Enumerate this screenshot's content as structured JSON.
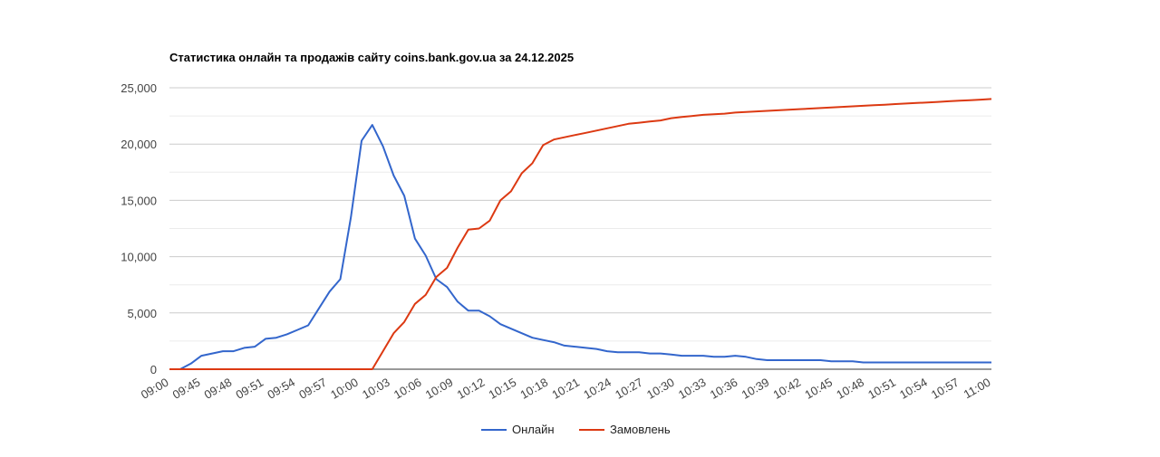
{
  "chart_data": {
    "type": "line",
    "title": "Статистика онлайн та продажів сайту coins.bank.gov.ua за 24.12.2025",
    "ylim": [
      0,
      25000
    ],
    "y_ticks": [
      "0",
      "5,000",
      "10,000",
      "15,000",
      "20,000",
      "25,000"
    ],
    "x_tick_labels": [
      "09:00",
      "09:45",
      "09:48",
      "09:51",
      "09:54",
      "09:57",
      "10:00",
      "10:03",
      "10:06",
      "10:09",
      "10:12",
      "10:15",
      "10:18",
      "10:21",
      "10:24",
      "10:27",
      "10:30",
      "10:33",
      "10:36",
      "10:39",
      "10:42",
      "10:45",
      "10:48",
      "10:51",
      "10:54",
      "10:57",
      "11:00"
    ],
    "grid": true,
    "legend_position": "bottom",
    "series": [
      {
        "name": "Онлайн",
        "color": "#3366cc",
        "values": [
          0,
          0,
          500,
          1200,
          1400,
          1600,
          1600,
          1900,
          2000,
          2700,
          2800,
          3100,
          3500,
          3900,
          5400,
          6900,
          8000,
          13500,
          20300,
          21700,
          19800,
          17200,
          15400,
          11600,
          10100,
          8000,
          7300,
          6000,
          5200,
          5200,
          4700,
          4000,
          3600,
          3200,
          2800,
          2600,
          2400,
          2100,
          2000,
          1900,
          1800,
          1600,
          1500,
          1500,
          1500,
          1400,
          1400,
          1300,
          1200,
          1200,
          1200,
          1100,
          1100,
          1200,
          1100,
          900,
          800,
          800,
          800,
          800,
          800,
          800,
          700,
          700,
          700,
          600,
          600,
          600,
          600,
          600,
          600,
          600,
          600,
          600,
          600,
          600,
          600,
          600
        ]
      },
      {
        "name": "Замовлень",
        "color": "#dc3912",
        "values": [
          0,
          0,
          0,
          0,
          0,
          0,
          0,
          0,
          0,
          0,
          0,
          0,
          0,
          0,
          0,
          0,
          0,
          0,
          0,
          0,
          1600,
          3200,
          4200,
          5800,
          6600,
          8200,
          9000,
          10800,
          12400,
          12500,
          13200,
          15000,
          15800,
          17400,
          18300,
          19900,
          20400,
          20600,
          20800,
          21000,
          21200,
          21400,
          21600,
          21800,
          21900,
          22000,
          22100,
          22300,
          22400,
          22500,
          22600,
          22650,
          22700,
          22800,
          22850,
          22900,
          22950,
          23000,
          23050,
          23100,
          23150,
          23200,
          23250,
          23300,
          23350,
          23400,
          23450,
          23500,
          23550,
          23600,
          23650,
          23700,
          23750,
          23800,
          23850,
          23900,
          23950,
          24000
        ]
      }
    ]
  }
}
